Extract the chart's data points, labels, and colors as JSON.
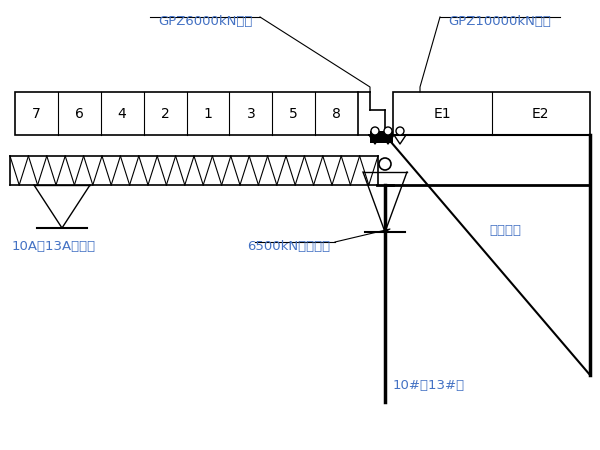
{
  "bg_color": "#ffffff",
  "text_color": "#000000",
  "label_color": "#4472C4",
  "line_color": "#000000",
  "beam_segments_left": [
    "7",
    "6",
    "4",
    "2",
    "1",
    "3",
    "5",
    "8"
  ],
  "beam_segments_right": [
    "E1",
    "E2"
  ],
  "label_gpz6000": "GPZ6000kN支座",
  "label_gpz10000": "GPZ10000kN支座",
  "label_6500": "6500kN临时支座",
  "label_temp_pier": "10A、13A临时墓",
  "label_pier": "10#、13#墓",
  "label_bracket": "墓旁托架",
  "fig_width": 6.0,
  "fig_height": 4.5,
  "dpi": 100
}
